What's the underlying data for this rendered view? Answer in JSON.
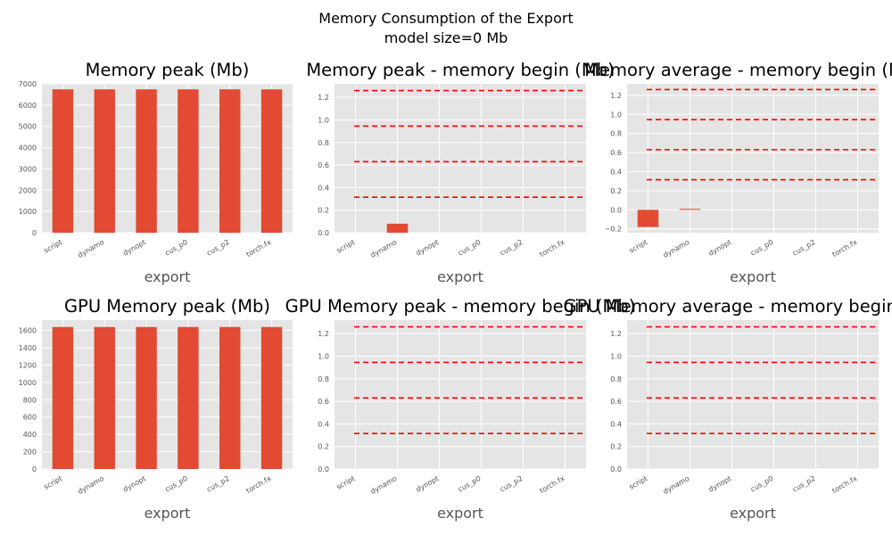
{
  "figure": {
    "suptitle": [
      "Memory Consumption of the Export",
      "model size=0 Mb"
    ]
  },
  "style": {
    "axes_bg": "#e5e5e5",
    "grid": "#ffffff",
    "bar": "#e24a33",
    "dash": "#ff0000",
    "text": "#555555"
  },
  "chart_data": [
    {
      "type": "bar",
      "title": "Memory peak (Mb)",
      "xlabel": "export",
      "ylabel": "",
      "categories": [
        "script",
        "dynamo",
        "dynopt",
        "cus_p0",
        "cus_p2",
        "torch.fx"
      ],
      "values": [
        6740,
        6740,
        6740,
        6740,
        6740,
        6740
      ],
      "ylim": [
        0,
        7000
      ],
      "yticks": [
        0,
        1000,
        2000,
        3000,
        4000,
        5000,
        6000,
        7000
      ],
      "ytick_labels": [
        "0",
        "1000",
        "2000",
        "3000",
        "4000",
        "5000",
        "6000",
        "7000"
      ],
      "hlines": [],
      "grid": true
    },
    {
      "type": "bar",
      "title": "Memory peak - memory begin (Mb)",
      "xlabel": "export",
      "ylabel": "",
      "categories": [
        "script",
        "dynamo",
        "dynopt",
        "cus_p0",
        "cus_p2",
        "torch.fx"
      ],
      "values": [
        0,
        0.08,
        0,
        0,
        0,
        0
      ],
      "ylim": [
        0,
        1.32
      ],
      "yticks": [
        0,
        0.2,
        0.4,
        0.6,
        0.8,
        1.0,
        1.2
      ],
      "ytick_labels": [
        "0.0",
        "0.2",
        "0.4",
        "0.6",
        "0.8",
        "1.0",
        "1.2"
      ],
      "hlines": [
        0.315,
        0.63,
        0.945,
        1.26
      ],
      "grid": true
    },
    {
      "type": "bar",
      "title": "Memory average - memory begin (Mb)",
      "xlabel": "export",
      "ylabel": "",
      "categories": [
        "script",
        "dynamo",
        "dynopt",
        "cus_p0",
        "cus_p2",
        "torch.fx"
      ],
      "values": [
        -0.18,
        0.01,
        0,
        0,
        0,
        0
      ],
      "ylim": [
        -0.24,
        1.32
      ],
      "yticks": [
        -0.2,
        0,
        0.2,
        0.4,
        0.6,
        0.8,
        1.0,
        1.2
      ],
      "ytick_labels": [
        "−0.2",
        "0.0",
        "0.2",
        "0.4",
        "0.6",
        "0.8",
        "1.0",
        "1.2"
      ],
      "hlines": [
        0.315,
        0.63,
        0.945,
        1.26
      ],
      "grid": true
    },
    {
      "type": "bar",
      "title": "GPU Memory peak (Mb)",
      "xlabel": "export",
      "ylabel": "",
      "categories": [
        "script",
        "dynamo",
        "dynopt",
        "cus_p0",
        "cus_p2",
        "torch.fx"
      ],
      "values": [
        1640,
        1640,
        1640,
        1640,
        1640,
        1640
      ],
      "ylim": [
        0,
        1720
      ],
      "yticks": [
        0,
        200,
        400,
        600,
        800,
        1000,
        1200,
        1400,
        1600
      ],
      "ytick_labels": [
        "0",
        "200",
        "400",
        "600",
        "800",
        "1000",
        "1200",
        "1400",
        "1600"
      ],
      "hlines": [],
      "grid": true
    },
    {
      "type": "bar",
      "title": "GPU Memory peak - memory begin (Mb)",
      "xlabel": "export",
      "ylabel": "",
      "categories": [
        "script",
        "dynamo",
        "dynopt",
        "cus_p0",
        "cus_p2",
        "torch.fx"
      ],
      "values": [
        0,
        0,
        0,
        0,
        0,
        0
      ],
      "ylim": [
        0,
        1.32
      ],
      "yticks": [
        0,
        0.2,
        0.4,
        0.6,
        0.8,
        1.0,
        1.2
      ],
      "ytick_labels": [
        "0.0",
        "0.2",
        "0.4",
        "0.6",
        "0.8",
        "1.0",
        "1.2"
      ],
      "hlines": [
        0.315,
        0.63,
        0.945,
        1.26
      ],
      "grid": true
    },
    {
      "type": "bar",
      "title": "GPU Memory average - memory begin (Mb)",
      "xlabel": "export",
      "ylabel": "",
      "categories": [
        "script",
        "dynamo",
        "dynopt",
        "cus_p0",
        "cus_p2",
        "torch.fx"
      ],
      "values": [
        0,
        0,
        0,
        0,
        0,
        0
      ],
      "ylim": [
        0,
        1.32
      ],
      "yticks": [
        0,
        0.2,
        0.4,
        0.6,
        0.8,
        1.0,
        1.2
      ],
      "ytick_labels": [
        "0.0",
        "0.2",
        "0.4",
        "0.6",
        "0.8",
        "1.0",
        "1.2"
      ],
      "hlines": [
        0.315,
        0.63,
        0.945,
        1.26
      ],
      "grid": true
    }
  ]
}
